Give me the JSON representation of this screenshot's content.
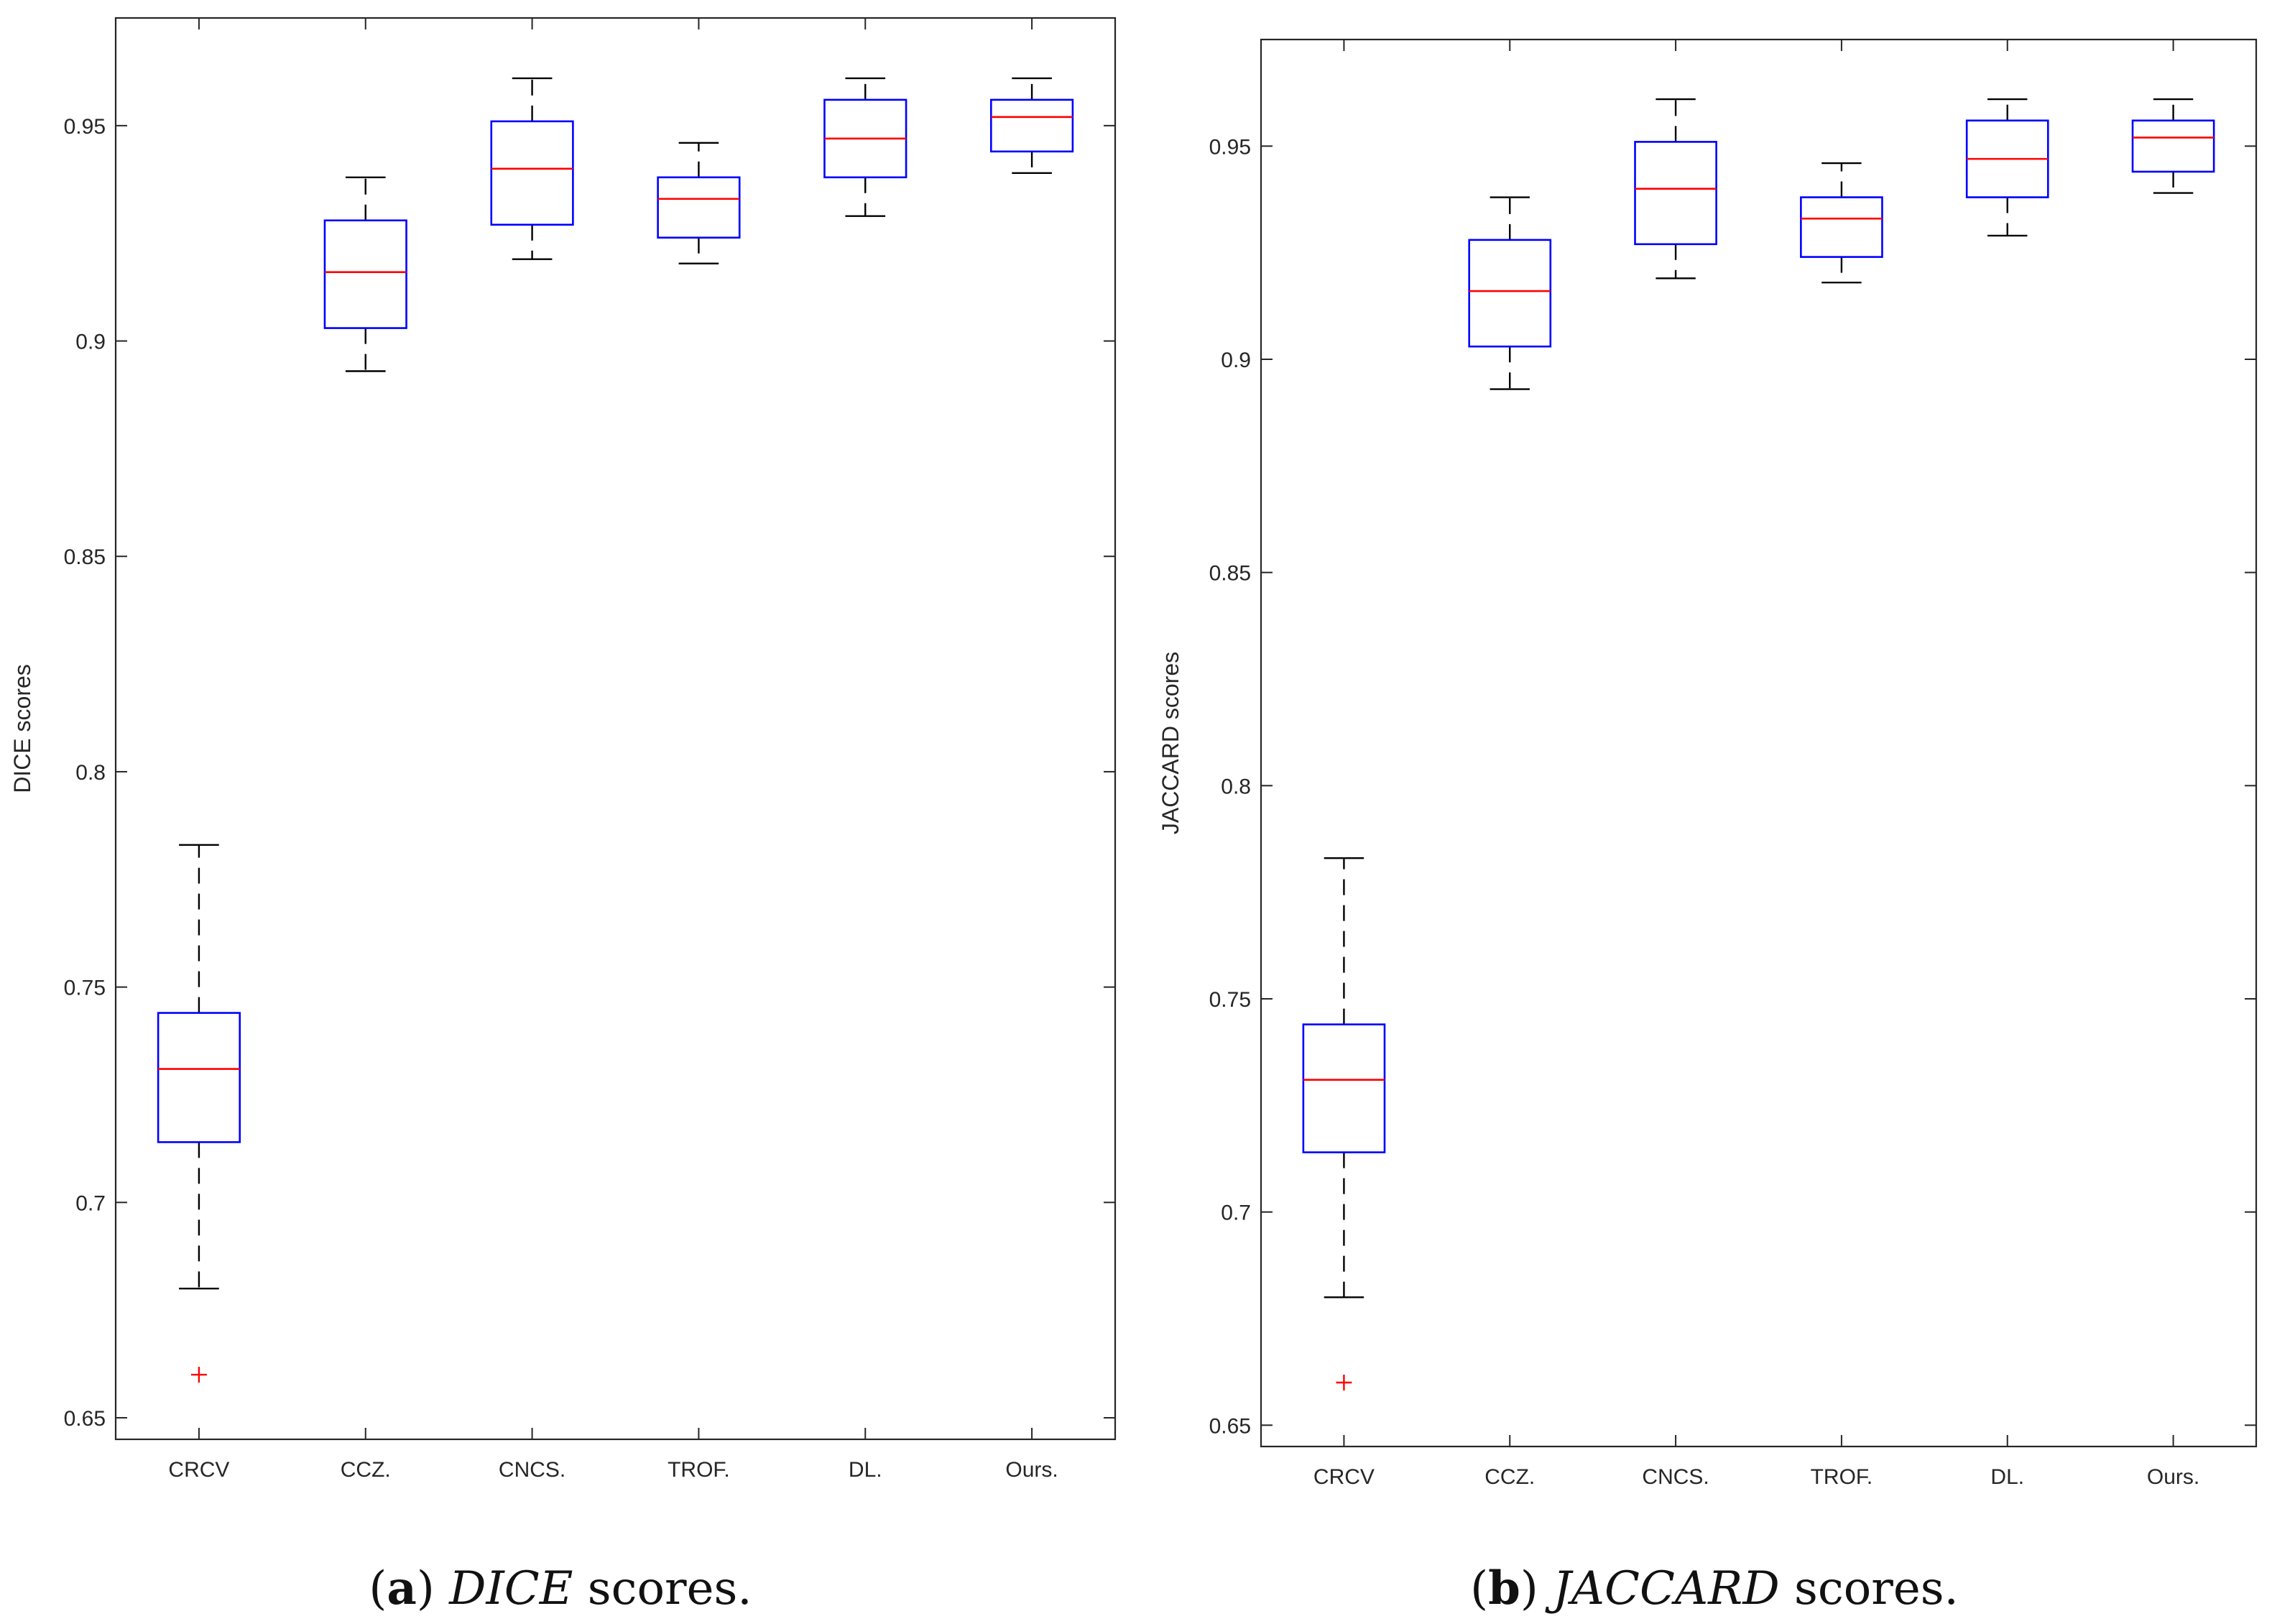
{
  "chart_data": [
    {
      "type": "boxplot",
      "title": "",
      "xlabel": "",
      "ylabel": "DICE scores",
      "ylim": [
        0.645,
        0.975
      ],
      "yticks": [
        0.65,
        0.7,
        0.75,
        0.8,
        0.85,
        0.9,
        0.95
      ],
      "ytick_labels": [
        "0.65",
        "0.7",
        "0.75",
        "0.8",
        "0.85",
        "0.9",
        "0.95"
      ],
      "categories": [
        "CRCV",
        "CCZ.",
        "CNCS.",
        "TROF.",
        "DL.",
        "Ours."
      ],
      "boxes": [
        {
          "whisker_low": 0.68,
          "q1": 0.714,
          "median": 0.731,
          "q3": 0.744,
          "whisker_high": 0.783,
          "outliers": [
            0.66
          ]
        },
        {
          "whisker_low": 0.893,
          "q1": 0.903,
          "median": 0.916,
          "q3": 0.928,
          "whisker_high": 0.938,
          "outliers": []
        },
        {
          "whisker_low": 0.919,
          "q1": 0.927,
          "median": 0.94,
          "q3": 0.951,
          "whisker_high": 0.961,
          "outliers": []
        },
        {
          "whisker_low": 0.918,
          "q1": 0.924,
          "median": 0.933,
          "q3": 0.938,
          "whisker_high": 0.946,
          "outliers": []
        },
        {
          "whisker_low": 0.929,
          "q1": 0.938,
          "median": 0.947,
          "q3": 0.956,
          "whisker_high": 0.961,
          "outliers": []
        },
        {
          "whisker_low": 0.939,
          "q1": 0.944,
          "median": 0.952,
          "q3": 0.956,
          "whisker_high": 0.961,
          "outliers": []
        }
      ],
      "caption": {
        "letter": "a",
        "open": "(",
        "close": ")",
        "metric": "DICE",
        "rest": " scores."
      }
    },
    {
      "type": "boxplot",
      "title": "",
      "xlabel": "",
      "ylabel": "JACCARD scores",
      "ylim": [
        0.645,
        0.975
      ],
      "yticks": [
        0.65,
        0.7,
        0.75,
        0.8,
        0.85,
        0.9,
        0.95
      ],
      "ytick_labels": [
        "0.65",
        "0.7",
        "0.75",
        "0.8",
        "0.85",
        "0.9",
        "0.95"
      ],
      "categories": [
        "CRCV",
        "CCZ.",
        "CNCS.",
        "TROF.",
        "DL.",
        "Ours."
      ],
      "boxes": [
        {
          "whisker_low": 0.68,
          "q1": 0.714,
          "median": 0.731,
          "q3": 0.744,
          "whisker_high": 0.783,
          "outliers": [
            0.66
          ]
        },
        {
          "whisker_low": 0.893,
          "q1": 0.903,
          "median": 0.916,
          "q3": 0.928,
          "whisker_high": 0.938,
          "outliers": []
        },
        {
          "whisker_low": 0.919,
          "q1": 0.927,
          "median": 0.94,
          "q3": 0.951,
          "whisker_high": 0.961,
          "outliers": []
        },
        {
          "whisker_low": 0.918,
          "q1": 0.924,
          "median": 0.933,
          "q3": 0.938,
          "whisker_high": 0.946,
          "outliers": []
        },
        {
          "whisker_low": 0.929,
          "q1": 0.938,
          "median": 0.947,
          "q3": 0.956,
          "whisker_high": 0.961,
          "outliers": []
        },
        {
          "whisker_low": 0.939,
          "q1": 0.944,
          "median": 0.952,
          "q3": 0.956,
          "whisker_high": 0.961,
          "outliers": []
        }
      ],
      "caption": {
        "letter": "b",
        "open": "(",
        "close": ")",
        "metric": "JACCARD",
        "rest": " scores."
      }
    }
  ],
  "colors": {
    "box": "#0000ff",
    "median": "#ff0000",
    "whisker": "#000000",
    "outlier": "#ff0000",
    "axis": "#262626"
  }
}
